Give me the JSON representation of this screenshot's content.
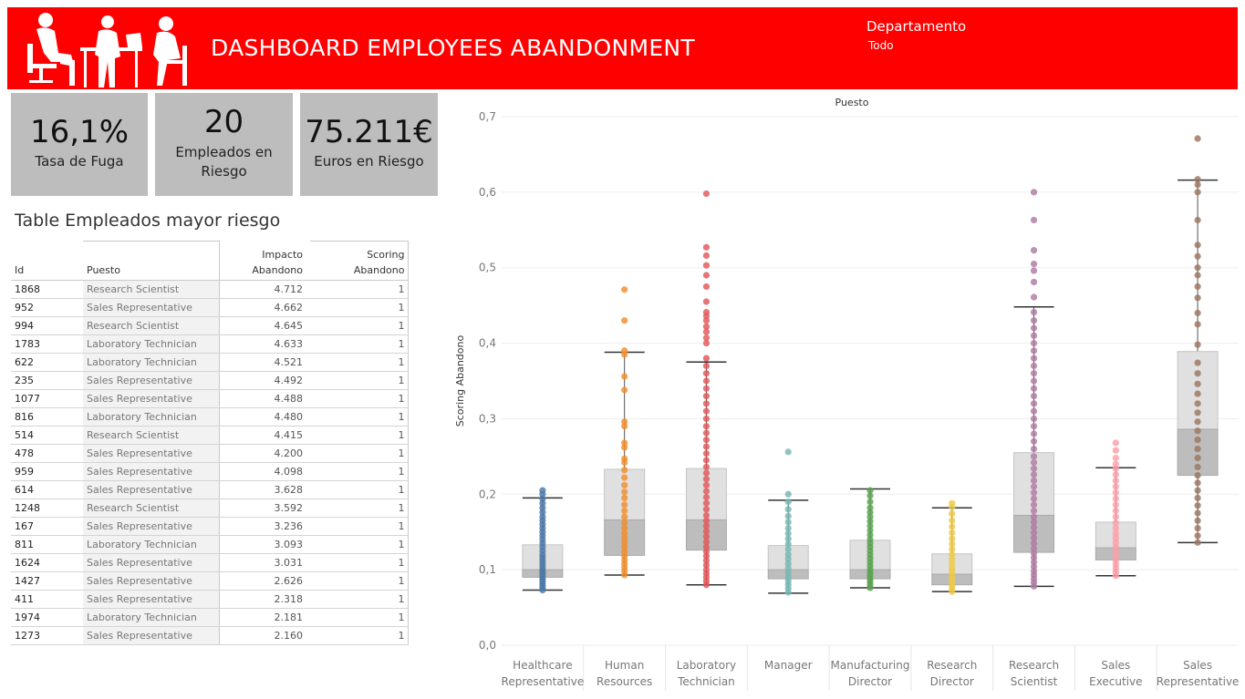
{
  "header": {
    "title": "DASHBOARD EMPLOYEES ABANDONMENT",
    "filter_label": "Departamento",
    "filter_value": "Todo",
    "banner_color": "#ff0000",
    "logo_icon": "office-people-silhouette-icon"
  },
  "kpis": [
    {
      "value": "16,1%",
      "label": "Tasa de Fuga"
    },
    {
      "value": "20",
      "label": "Empleados en Riesgo"
    },
    {
      "value": "75.211€",
      "label": "Euros en Riesgo"
    }
  ],
  "table": {
    "title": "Table Empleados mayor riesgo",
    "columns": [
      "Id",
      "Puesto",
      "Impacto Abandono",
      "Scoring Abandono"
    ],
    "rows": [
      [
        "1868",
        "Research Scientist",
        "4.712",
        "1"
      ],
      [
        "952",
        "Sales Representative",
        "4.662",
        "1"
      ],
      [
        "994",
        "Research Scientist",
        "4.645",
        "1"
      ],
      [
        "1783",
        "Laboratory Technician",
        "4.633",
        "1"
      ],
      [
        "622",
        "Laboratory Technician",
        "4.521",
        "1"
      ],
      [
        "235",
        "Sales Representative",
        "4.492",
        "1"
      ],
      [
        "1077",
        "Sales Representative",
        "4.488",
        "1"
      ],
      [
        "816",
        "Laboratory Technician",
        "4.480",
        "1"
      ],
      [
        "514",
        "Research Scientist",
        "4.415",
        "1"
      ],
      [
        "478",
        "Sales Representative",
        "4.200",
        "1"
      ],
      [
        "959",
        "Sales Representative",
        "4.098",
        "1"
      ],
      [
        "614",
        "Sales Representative",
        "3.628",
        "1"
      ],
      [
        "1248",
        "Research Scientist",
        "3.592",
        "1"
      ],
      [
        "167",
        "Sales Representative",
        "3.236",
        "1"
      ],
      [
        "811",
        "Laboratory Technician",
        "3.093",
        "1"
      ],
      [
        "1624",
        "Sales Representative",
        "3.031",
        "1"
      ],
      [
        "1427",
        "Sales Representative",
        "2.626",
        "1"
      ],
      [
        "411",
        "Sales Representative",
        "2.318",
        "1"
      ],
      [
        "1974",
        "Laboratory Technician",
        "2.181",
        "1"
      ],
      [
        "1273",
        "Sales Representative",
        "2.160",
        "1"
      ]
    ]
  },
  "chart_data": {
    "type": "scatter",
    "subtype": "box-plot with jittered points",
    "title": "Puesto",
    "ylabel": "Scoring Abandono",
    "xlabel": "",
    "ylim": [
      0,
      0.7
    ],
    "yticks": [
      "0,0",
      "0,1",
      "0,2",
      "0,3",
      "0,4",
      "0,5",
      "0,6",
      "0,7"
    ],
    "yticks_values": [
      0,
      0.1,
      0.2,
      0.3,
      0.4,
      0.5,
      0.6,
      0.7
    ],
    "grid": true,
    "legend": "none",
    "categories": [
      {
        "name": "Healthcare Representative",
        "lines": [
          "Healthcare",
          "Representative"
        ],
        "color": "#4e79a7",
        "box": {
          "whisker_low": 0.073,
          "q1": 0.09,
          "median": 0.1,
          "q3": 0.133,
          "whisker_high": 0.195
        },
        "points": [
          0.073,
          0.076,
          0.079,
          0.082,
          0.085,
          0.088,
          0.091,
          0.094,
          0.097,
          0.1,
          0.104,
          0.108,
          0.112,
          0.116,
          0.12,
          0.125,
          0.13,
          0.135,
          0.14,
          0.145,
          0.15,
          0.155,
          0.16,
          0.165,
          0.17,
          0.176,
          0.182,
          0.188,
          0.194,
          0.2,
          0.205
        ]
      },
      {
        "name": "Human Resources",
        "lines": [
          "Human",
          "Resources"
        ],
        "color": "#f28e2b",
        "box": {
          "whisker_low": 0.093,
          "q1": 0.119,
          "median": 0.166,
          "q3": 0.233,
          "whisker_high": 0.388
        },
        "points": [
          0.093,
          0.098,
          0.103,
          0.108,
          0.113,
          0.118,
          0.124,
          0.13,
          0.136,
          0.142,
          0.148,
          0.155,
          0.162,
          0.17,
          0.178,
          0.186,
          0.195,
          0.203,
          0.212,
          0.222,
          0.232,
          0.242,
          0.247,
          0.262,
          0.268,
          0.29,
          0.296,
          0.338,
          0.356,
          0.385,
          0.39,
          0.43,
          0.471
        ]
      },
      {
        "name": "Laboratory Technician",
        "lines": [
          "Laboratory",
          "Technician"
        ],
        "color": "#e15759",
        "box": {
          "whisker_low": 0.08,
          "q1": 0.126,
          "median": 0.166,
          "q3": 0.234,
          "whisker_high": 0.375
        },
        "points": [
          0.08,
          0.085,
          0.09,
          0.095,
          0.1,
          0.106,
          0.112,
          0.118,
          0.124,
          0.13,
          0.137,
          0.144,
          0.151,
          0.158,
          0.165,
          0.172,
          0.18,
          0.188,
          0.196,
          0.204,
          0.212,
          0.22,
          0.228,
          0.236,
          0.245,
          0.254,
          0.263,
          0.272,
          0.281,
          0.29,
          0.3,
          0.31,
          0.32,
          0.33,
          0.34,
          0.35,
          0.36,
          0.37,
          0.38,
          0.4,
          0.407,
          0.415,
          0.422,
          0.43,
          0.436,
          0.441,
          0.455,
          0.475,
          0.49,
          0.503,
          0.516,
          0.527,
          0.598
        ]
      },
      {
        "name": "Manager",
        "lines": [
          "Manager"
        ],
        "color": "#76b7b2",
        "box": {
          "whisker_low": 0.069,
          "q1": 0.088,
          "median": 0.1,
          "q3": 0.132,
          "whisker_high": 0.192
        },
        "points": [
          0.07,
          0.075,
          0.08,
          0.085,
          0.09,
          0.096,
          0.102,
          0.108,
          0.114,
          0.12,
          0.127,
          0.134,
          0.141,
          0.148,
          0.155,
          0.163,
          0.171,
          0.18,
          0.19,
          0.2,
          0.256
        ]
      },
      {
        "name": "Manufacturing Director",
        "lines": [
          "Manufacturing",
          "Director"
        ],
        "color": "#59a14f",
        "box": {
          "whisker_low": 0.076,
          "q1": 0.088,
          "median": 0.1,
          "q3": 0.139,
          "whisker_high": 0.207
        },
        "points": [
          0.076,
          0.08,
          0.084,
          0.088,
          0.092,
          0.096,
          0.1,
          0.105,
          0.11,
          0.115,
          0.12,
          0.125,
          0.13,
          0.135,
          0.14,
          0.146,
          0.152,
          0.158,
          0.164,
          0.17,
          0.176,
          0.182,
          0.19,
          0.198,
          0.205
        ]
      },
      {
        "name": "Research Director",
        "lines": [
          "Research",
          "Director"
        ],
        "color": "#edc948",
        "box": {
          "whisker_low": 0.071,
          "q1": 0.08,
          "median": 0.094,
          "q3": 0.121,
          "whisker_high": 0.182
        },
        "points": [
          0.071,
          0.075,
          0.079,
          0.083,
          0.087,
          0.092,
          0.097,
          0.102,
          0.108,
          0.114,
          0.12,
          0.127,
          0.134,
          0.141,
          0.149,
          0.157,
          0.165,
          0.174,
          0.183,
          0.188
        ]
      },
      {
        "name": "Research Scientist",
        "lines": [
          "Research",
          "Scientist"
        ],
        "color": "#b07aa1",
        "box": {
          "whisker_low": 0.078,
          "q1": 0.123,
          "median": 0.172,
          "q3": 0.255,
          "whisker_high": 0.448
        },
        "points": [
          0.078,
          0.083,
          0.088,
          0.093,
          0.098,
          0.104,
          0.11,
          0.116,
          0.122,
          0.128,
          0.135,
          0.142,
          0.149,
          0.156,
          0.163,
          0.17,
          0.178,
          0.186,
          0.194,
          0.202,
          0.21,
          0.218,
          0.226,
          0.234,
          0.242,
          0.25,
          0.26,
          0.27,
          0.28,
          0.29,
          0.3,
          0.31,
          0.32,
          0.33,
          0.34,
          0.35,
          0.36,
          0.37,
          0.38,
          0.39,
          0.4,
          0.41,
          0.42,
          0.43,
          0.441,
          0.461,
          0.481,
          0.496,
          0.505,
          0.523,
          0.563,
          0.6
        ]
      },
      {
        "name": "Sales Executive",
        "lines": [
          "Sales",
          "Executive"
        ],
        "color": "#ff9da7",
        "box": {
          "whisker_low": 0.092,
          "q1": 0.113,
          "median": 0.129,
          "q3": 0.163,
          "whisker_high": 0.235
        },
        "points": [
          0.092,
          0.097,
          0.102,
          0.107,
          0.112,
          0.118,
          0.124,
          0.13,
          0.136,
          0.142,
          0.148,
          0.155,
          0.162,
          0.17,
          0.178,
          0.186,
          0.194,
          0.202,
          0.21,
          0.218,
          0.226,
          0.234,
          0.24,
          0.248,
          0.258,
          0.268
        ]
      },
      {
        "name": "Sales Representative",
        "lines": [
          "Sales",
          "Representative"
        ],
        "color": "#9c755f",
        "box": {
          "whisker_low": 0.136,
          "q1": 0.225,
          "median": 0.286,
          "q3": 0.389,
          "whisker_high": 0.616
        },
        "points": [
          0.136,
          0.145,
          0.155,
          0.165,
          0.175,
          0.185,
          0.195,
          0.205,
          0.215,
          0.225,
          0.236,
          0.248,
          0.26,
          0.272,
          0.284,
          0.296,
          0.308,
          0.32,
          0.333,
          0.346,
          0.36,
          0.374,
          0.398,
          0.425,
          0.44,
          0.46,
          0.475,
          0.49,
          0.5,
          0.515,
          0.53,
          0.563,
          0.6,
          0.61,
          0.617,
          0.671
        ]
      }
    ]
  }
}
